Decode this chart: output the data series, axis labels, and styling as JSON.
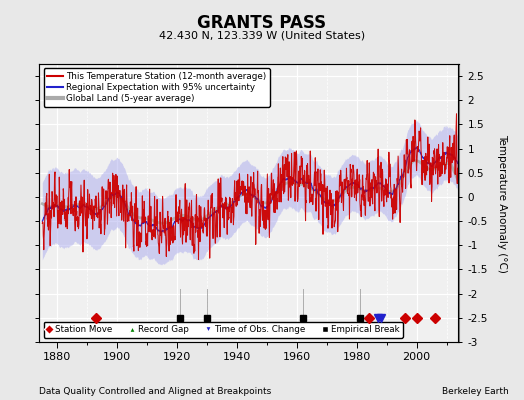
{
  "title": "GRANTS PASS",
  "subtitle": "42.430 N, 123.339 W (United States)",
  "ylabel": "Temperature Anomaly (°C)",
  "xlabel_left": "Data Quality Controlled and Aligned at Breakpoints",
  "xlabel_right": "Berkeley Earth",
  "year_start": 1875,
  "year_end": 2013,
  "ylim": [
    -3.0,
    2.75
  ],
  "yticks": [
    -3,
    -2.5,
    -2,
    -1.5,
    -1,
    -0.5,
    0,
    0.5,
    1,
    1.5,
    2,
    2.5
  ],
  "xticks": [
    1880,
    1900,
    1920,
    1940,
    1960,
    1980,
    2000
  ],
  "background_color": "#e8e8e8",
  "plot_background": "#f0f0f0",
  "grid_color": "#ffffff",
  "station_moves": [
    1893,
    1984,
    1996,
    2000,
    2006
  ],
  "record_gaps": [],
  "obs_changes": [
    1987,
    1988
  ],
  "empirical_breaks": [
    1921,
    1930,
    1962,
    1981
  ],
  "uncertainty_color": "#aaaaee",
  "regional_color": "#2222cc",
  "station_color": "#cc0000",
  "global_color": "#aaaaaa",
  "marker_y": -2.5
}
